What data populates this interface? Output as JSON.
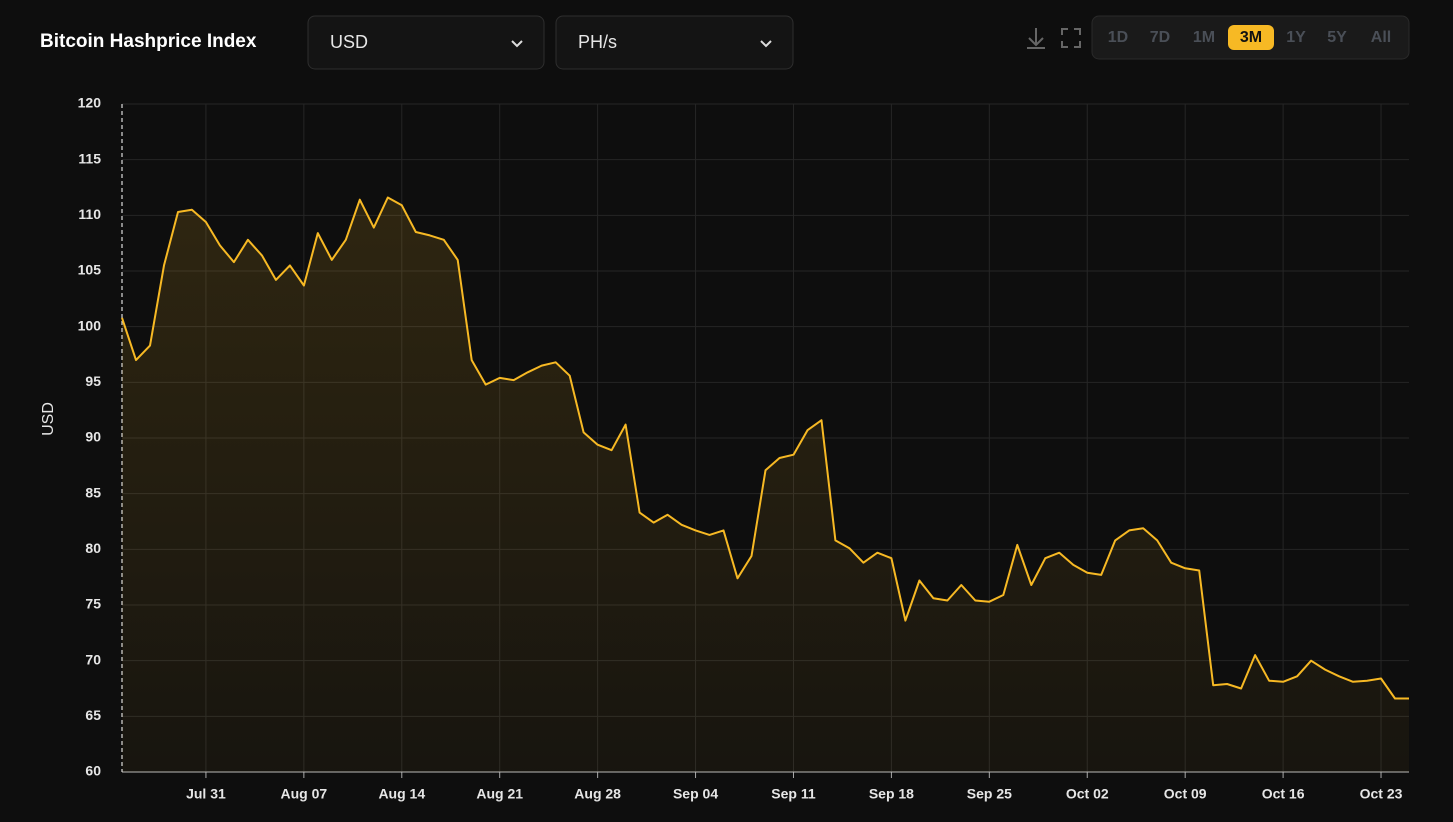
{
  "controls": {
    "currency": "USD",
    "unit": "PH/s",
    "ranges": [
      "1D",
      "7D",
      "1M",
      "3M",
      "1Y",
      "5Y",
      "All"
    ],
    "active_range": "3M"
  },
  "chart_data": {
    "type": "area",
    "title": "Bitcoin Hashprice Index",
    "y_label": "USD",
    "x": [
      "Jul 25",
      "Jul 26",
      "Jul 27",
      "Jul 28",
      "Jul 29",
      "Jul 30",
      "Jul 31",
      "Aug 01",
      "Aug 02",
      "Aug 03",
      "Aug 04",
      "Aug 05",
      "Aug 06",
      "Aug 07",
      "Aug 08",
      "Aug 09",
      "Aug 10",
      "Aug 11",
      "Aug 12",
      "Aug 13",
      "Aug 14",
      "Aug 15",
      "Aug 16",
      "Aug 17",
      "Aug 18",
      "Aug 19",
      "Aug 20",
      "Aug 21",
      "Aug 22",
      "Aug 23",
      "Aug 24",
      "Aug 25",
      "Aug 26",
      "Aug 27",
      "Aug 28",
      "Aug 29",
      "Aug 30",
      "Aug 31",
      "Sep 01",
      "Sep 02",
      "Sep 03",
      "Sep 04",
      "Sep 05",
      "Sep 06",
      "Sep 07",
      "Sep 08",
      "Sep 09",
      "Sep 10",
      "Sep 11",
      "Sep 12",
      "Sep 13",
      "Sep 14",
      "Sep 15",
      "Sep 16",
      "Sep 17",
      "Sep 18",
      "Sep 19",
      "Sep 20",
      "Sep 21",
      "Sep 22",
      "Sep 23",
      "Sep 24",
      "Sep 25",
      "Sep 26",
      "Sep 27",
      "Sep 28",
      "Sep 29",
      "Sep 30",
      "Oct 01",
      "Oct 02",
      "Oct 03",
      "Oct 04",
      "Oct 05",
      "Oct 06",
      "Oct 07",
      "Oct 08",
      "Oct 09",
      "Oct 10",
      "Oct 11",
      "Oct 12",
      "Oct 13",
      "Oct 14",
      "Oct 15",
      "Oct 16",
      "Oct 17",
      "Oct 18",
      "Oct 19",
      "Oct 20",
      "Oct 21",
      "Oct 22",
      "Oct 23",
      "Oct 24",
      "Oct 25"
    ],
    "series": [
      {
        "name": "Hashprice",
        "color": "#f7b924",
        "values": [
          100.8,
          97,
          98.3,
          105.5,
          110.3,
          110.5,
          109.4,
          107.3,
          105.8,
          107.8,
          106.4,
          104.2,
          105.5,
          103.7,
          108.4,
          106,
          107.8,
          111.4,
          108.9,
          111.6,
          110.9,
          108.5,
          108.2,
          107.8,
          106,
          97,
          94.8,
          95.4,
          95.2,
          95.9,
          96.5,
          96.8,
          95.6,
          90.5,
          89.4,
          88.9,
          91.2,
          83.3,
          82.4,
          83.1,
          82.2,
          81.7,
          81.3,
          81.7,
          77.4,
          79.4,
          87.1,
          88.2,
          88.5,
          90.7,
          91.6,
          80.8,
          80.1,
          78.8,
          79.7,
          79.2,
          73.6,
          77.2,
          75.6,
          75.4,
          76.8,
          75.4,
          75.3,
          75.9,
          80.4,
          76.8,
          79.2,
          79.7,
          78.6,
          77.9,
          77.7,
          80.8,
          81.7,
          81.9,
          80.8,
          78.8,
          78.3,
          78.1,
          67.8,
          67.9,
          67.5,
          70.5,
          68.2,
          68.1,
          68.6,
          70,
          69.2,
          68.6,
          68.1,
          68.2,
          68.4,
          66.6,
          66.6
        ]
      }
    ],
    "xticks": [
      "Jul 31",
      "Aug 07",
      "Aug 14",
      "Aug 21",
      "Aug 28",
      "Sep 04",
      "Sep 11",
      "Sep 18",
      "Sep 25",
      "Oct 02",
      "Oct 09",
      "Oct 16",
      "Oct 23"
    ],
    "ylim": [
      60,
      120
    ],
    "yticks": [
      60,
      65,
      70,
      75,
      80,
      85,
      90,
      95,
      100,
      105,
      110,
      115,
      120
    ],
    "grid": true
  }
}
